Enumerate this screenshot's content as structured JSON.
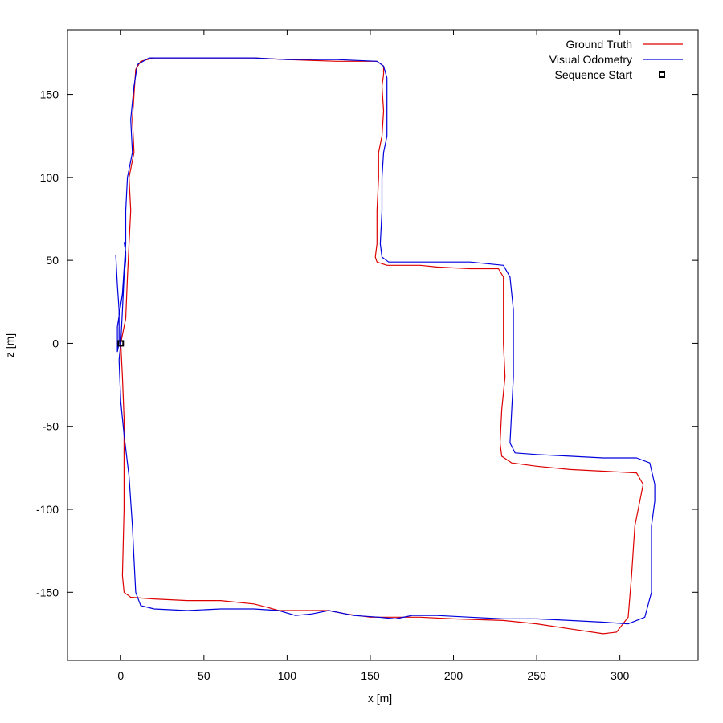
{
  "chart_data": {
    "type": "line",
    "title": "",
    "xlabel": "x [m]",
    "ylabel": "z [m]",
    "xlim": [
      -32,
      347
    ],
    "ylim": [
      -191,
      189
    ],
    "xticks": [
      0,
      50,
      100,
      150,
      200,
      250,
      300
    ],
    "yticks": [
      150,
      100,
      50,
      0,
      -50,
      -100,
      -150
    ],
    "xtick_labels": [
      "0",
      "50",
      "100",
      "150",
      "200",
      "250",
      "300"
    ],
    "ytick_labels": [
      "150",
      "100",
      "50",
      "0",
      "-50",
      "-100",
      "-150"
    ],
    "grid": false,
    "legend_position": "top-right",
    "series": [
      {
        "name": "Ground Truth",
        "color": "#dd0000",
        "points": [
          [
            0,
            0
          ],
          [
            1,
            -20
          ],
          [
            2,
            -45
          ],
          [
            2,
            -100
          ],
          [
            1,
            -140
          ],
          [
            2,
            -150
          ],
          [
            6,
            -153
          ],
          [
            20,
            -154
          ],
          [
            40,
            -155
          ],
          [
            60,
            -155
          ],
          [
            80,
            -157
          ],
          [
            88,
            -159
          ],
          [
            95,
            -161
          ],
          [
            110,
            -161
          ],
          [
            125,
            -161
          ],
          [
            135,
            -163
          ],
          [
            150,
            -165
          ],
          [
            170,
            -165
          ],
          [
            180,
            -165
          ],
          [
            200,
            -166
          ],
          [
            230,
            -167
          ],
          [
            250,
            -169
          ],
          [
            270,
            -172
          ],
          [
            290,
            -175
          ],
          [
            298,
            -174
          ],
          [
            305,
            -165
          ],
          [
            307,
            -140
          ],
          [
            309,
            -110
          ],
          [
            312,
            -95
          ],
          [
            314,
            -85
          ],
          [
            310,
            -78
          ],
          [
            290,
            -77
          ],
          [
            270,
            -76
          ],
          [
            250,
            -74
          ],
          [
            235,
            -72
          ],
          [
            229,
            -68
          ],
          [
            228,
            -60
          ],
          [
            229,
            -40
          ],
          [
            231,
            -20
          ],
          [
            230,
            0
          ],
          [
            230,
            20
          ],
          [
            230,
            40
          ],
          [
            227,
            45
          ],
          [
            210,
            45
          ],
          [
            190,
            46
          ],
          [
            180,
            47
          ],
          [
            160,
            47
          ],
          [
            154,
            49
          ],
          [
            153,
            52
          ],
          [
            154,
            60
          ],
          [
            154,
            80
          ],
          [
            155,
            100
          ],
          [
            155,
            115
          ],
          [
            157,
            125
          ],
          [
            158,
            140
          ],
          [
            157,
            155
          ],
          [
            158,
            162
          ],
          [
            158,
            167
          ],
          [
            154,
            170
          ],
          [
            130,
            170
          ],
          [
            100,
            171
          ],
          [
            80,
            172
          ],
          [
            40,
            172
          ],
          [
            20,
            172
          ],
          [
            12,
            170
          ],
          [
            9,
            165
          ],
          [
            8,
            150
          ],
          [
            7,
            135
          ],
          [
            8,
            115
          ],
          [
            5,
            100
          ],
          [
            6,
            80
          ],
          [
            5,
            60
          ],
          [
            4,
            40
          ],
          [
            3,
            15
          ],
          [
            0,
            0
          ]
        ]
      },
      {
        "name": "Visual Odometry",
        "color": "#0000dd",
        "points": [
          [
            2,
            61
          ],
          [
            3,
            55
          ],
          [
            3,
            50
          ],
          [
            2,
            40
          ],
          [
            1,
            20
          ],
          [
            0,
            0
          ],
          [
            -1,
            -10
          ],
          [
            0,
            -35
          ],
          [
            2,
            -55
          ],
          [
            5,
            -80
          ],
          [
            7,
            -110
          ],
          [
            8,
            -130
          ],
          [
            9,
            -150
          ],
          [
            12,
            -158
          ],
          [
            20,
            -160
          ],
          [
            40,
            -161
          ],
          [
            60,
            -160
          ],
          [
            80,
            -160
          ],
          [
            95,
            -161
          ],
          [
            105,
            -164
          ],
          [
            115,
            -163
          ],
          [
            125,
            -161
          ],
          [
            140,
            -164
          ],
          [
            155,
            -165
          ],
          [
            165,
            -166
          ],
          [
            175,
            -164
          ],
          [
            190,
            -164
          ],
          [
            210,
            -165
          ],
          [
            230,
            -166
          ],
          [
            250,
            -166
          ],
          [
            270,
            -167
          ],
          [
            290,
            -168
          ],
          [
            305,
            -169
          ],
          [
            315,
            -165
          ],
          [
            319,
            -150
          ],
          [
            319,
            -130
          ],
          [
            319,
            -110
          ],
          [
            321,
            -95
          ],
          [
            321,
            -85
          ],
          [
            318,
            -72
          ],
          [
            310,
            -69
          ],
          [
            290,
            -69
          ],
          [
            270,
            -68
          ],
          [
            250,
            -67
          ],
          [
            237,
            -66
          ],
          [
            234,
            -60
          ],
          [
            235,
            -40
          ],
          [
            236,
            -20
          ],
          [
            236,
            0
          ],
          [
            236,
            20
          ],
          [
            234,
            40
          ],
          [
            230,
            47
          ],
          [
            210,
            49
          ],
          [
            190,
            49
          ],
          [
            170,
            49
          ],
          [
            161,
            49
          ],
          [
            157,
            52
          ],
          [
            156,
            60
          ],
          [
            157,
            80
          ],
          [
            157,
            100
          ],
          [
            158,
            115
          ],
          [
            160,
            125
          ],
          [
            160,
            140
          ],
          [
            160,
            160
          ],
          [
            158,
            167
          ],
          [
            154,
            170
          ],
          [
            130,
            171
          ],
          [
            100,
            171
          ],
          [
            80,
            172
          ],
          [
            40,
            172
          ],
          [
            17,
            172
          ],
          [
            10,
            168
          ],
          [
            8,
            155
          ],
          [
            6,
            135
          ],
          [
            7,
            115
          ],
          [
            4,
            100
          ],
          [
            3,
            80
          ],
          [
            3,
            60
          ],
          [
            1,
            30
          ],
          [
            -2,
            10
          ],
          [
            -2,
            -5
          ],
          [
            -1,
            0
          ],
          [
            -1,
            20
          ],
          [
            -2,
            35
          ],
          [
            -3,
            53
          ]
        ]
      }
    ],
    "start_marker": {
      "label": "Sequence Start",
      "x": 0,
      "y": 0
    }
  }
}
